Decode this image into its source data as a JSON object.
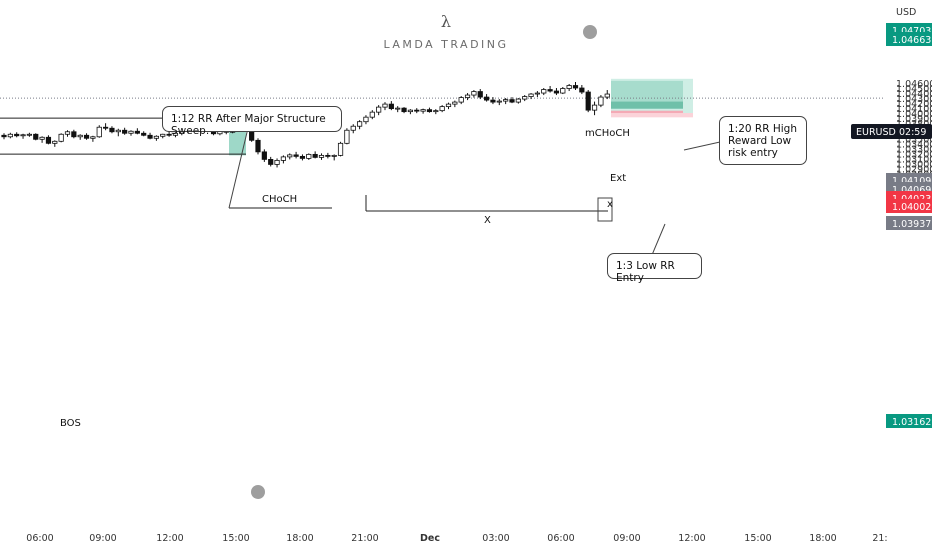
{
  "watermark": {
    "logo": "λ",
    "name": "LAMDA TRADING"
  },
  "chart_data": {
    "type": "candlestick",
    "currency_label": "USD",
    "symbol": "EURUSD",
    "countdown": "02:59",
    "x_ticks": [
      "06:00",
      "09:00",
      "12:00",
      "15:00",
      "18:00",
      "21:00",
      "Dec",
      "03:00",
      "06:00",
      "09:00",
      "12:00",
      "15:00",
      "18:00",
      "21:"
    ],
    "y_ticks": [
      "1.04600",
      "1.04500",
      "1.04400",
      "1.04300",
      "1.04200",
      "1.04100",
      "1.04000",
      "1.03900",
      "1.03800",
      "1.03700",
      "1.03600",
      "1.03500",
      "1.03400",
      "1.03300",
      "1.03200",
      "1.03100",
      "1.03000",
      "1.02900",
      "1.02800"
    ],
    "ylim": [
      1.0275,
      1.0478
    ],
    "price_tags": [
      {
        "value": "1.04703",
        "color": "#089981"
      },
      {
        "value": "1.04663",
        "color": "#089981"
      },
      {
        "value": "1.04109",
        "color": "#787b86"
      },
      {
        "value": "1.04069",
        "color": "#787b86"
      },
      {
        "value": "1.04023",
        "color": "#f23645"
      },
      {
        "value": "1.04002",
        "color": "#f23645"
      },
      {
        "value": "1.03937",
        "color": "#787b86"
      },
      {
        "value": "1.03162",
        "color": "#089981"
      }
    ],
    "current_price": 1.0432,
    "candles_approx": [
      [
        1.0358,
        1.0362,
        1.035,
        1.0355
      ],
      [
        1.0355,
        1.0363,
        1.0352,
        1.036
      ],
      [
        1.036,
        1.0364,
        1.0354,
        1.0357
      ],
      [
        1.0357,
        1.0361,
        1.0351,
        1.0359
      ],
      [
        1.0359,
        1.0363,
        1.0355,
        1.036
      ],
      [
        1.036,
        1.0362,
        1.0348,
        1.035
      ],
      [
        1.035,
        1.0356,
        1.0343,
        1.0354
      ],
      [
        1.0354,
        1.0358,
        1.034,
        1.0342
      ],
      [
        1.0342,
        1.0348,
        1.0335,
        1.0346
      ],
      [
        1.0346,
        1.0362,
        1.0344,
        1.036
      ],
      [
        1.036,
        1.0368,
        1.0355,
        1.0365
      ],
      [
        1.0365,
        1.0369,
        1.0352,
        1.0355
      ],
      [
        1.0355,
        1.036,
        1.0349,
        1.0358
      ],
      [
        1.0358,
        1.0362,
        1.0349,
        1.0352
      ],
      [
        1.0352,
        1.0357,
        1.0345,
        1.0355
      ],
      [
        1.0355,
        1.0378,
        1.0353,
        1.0374
      ],
      [
        1.0374,
        1.0382,
        1.0368,
        1.0372
      ],
      [
        1.0372,
        1.0376,
        1.0362,
        1.0365
      ],
      [
        1.0365,
        1.0371,
        1.0356,
        1.0368
      ],
      [
        1.0368,
        1.0373,
        1.0359,
        1.0362
      ],
      [
        1.0362,
        1.0368,
        1.0357,
        1.0366
      ],
      [
        1.0366,
        1.0372,
        1.036,
        1.0362
      ],
      [
        1.0362,
        1.0366,
        1.0356,
        1.0358
      ],
      [
        1.0358,
        1.0363,
        1.035,
        1.0352
      ],
      [
        1.0352,
        1.0358,
        1.0347,
        1.0356
      ],
      [
        1.0356,
        1.0361,
        1.0352,
        1.036
      ],
      [
        1.036,
        1.0366,
        1.0355,
        1.0358
      ],
      [
        1.0358,
        1.0364,
        1.0354,
        1.0362
      ],
      [
        1.0362,
        1.037,
        1.0358,
        1.0368
      ],
      [
        1.0368,
        1.0374,
        1.0362,
        1.037
      ],
      [
        1.037,
        1.0382,
        1.0366,
        1.0378
      ],
      [
        1.0378,
        1.0388,
        1.0372,
        1.0384
      ],
      [
        1.0384,
        1.0392,
        1.0378,
        1.038
      ],
      [
        1.038,
        1.0385,
        1.0358,
        1.0361
      ],
      [
        1.0361,
        1.0376,
        1.0358,
        1.0372
      ],
      [
        1.0372,
        1.0378,
        1.036,
        1.0364
      ],
      [
        1.0364,
        1.0388,
        1.0362,
        1.0386
      ],
      [
        1.0386,
        1.0394,
        1.0378,
        1.039
      ],
      [
        1.039,
        1.0392,
        1.0372,
        1.0375
      ],
      [
        1.0375,
        1.0378,
        1.0345,
        1.0348
      ],
      [
        1.0348,
        1.0352,
        1.032,
        1.0325
      ],
      [
        1.0325,
        1.033,
        1.0305,
        1.031
      ],
      [
        1.031,
        1.0315,
        1.0296,
        1.03
      ],
      [
        1.03,
        1.0312,
        1.0294,
        1.0308
      ],
      [
        1.0308,
        1.0318,
        1.0302,
        1.0315
      ],
      [
        1.0315,
        1.0322,
        1.031,
        1.0319
      ],
      [
        1.0319,
        1.0325,
        1.0312,
        1.0316
      ],
      [
        1.0316,
        1.032,
        1.0308,
        1.0312
      ],
      [
        1.0312,
        1.0322,
        1.0309,
        1.032
      ],
      [
        1.032,
        1.0326,
        1.0312,
        1.0314
      ],
      [
        1.0314,
        1.0322,
        1.0309,
        1.0318
      ],
      [
        1.0318,
        1.0323,
        1.0312,
        1.0316
      ],
      [
        1.0316,
        1.032,
        1.0308,
        1.0318
      ],
      [
        1.0318,
        1.0345,
        1.0316,
        1.0342
      ],
      [
        1.0342,
        1.0372,
        1.034,
        1.0368
      ],
      [
        1.0368,
        1.038,
        1.0362,
        1.0376
      ],
      [
        1.0376,
        1.0388,
        1.037,
        1.0385
      ],
      [
        1.0385,
        1.0398,
        1.038,
        1.0394
      ],
      [
        1.0394,
        1.0408,
        1.039,
        1.0404
      ],
      [
        1.0404,
        1.0418,
        1.0398,
        1.0414
      ],
      [
        1.0414,
        1.0424,
        1.0408,
        1.042
      ],
      [
        1.042,
        1.0426,
        1.0408,
        1.0411
      ],
      [
        1.0411,
        1.0416,
        1.0404,
        1.0412
      ],
      [
        1.0412,
        1.0414,
        1.0402,
        1.0405
      ],
      [
        1.0405,
        1.041,
        1.04,
        1.0408
      ],
      [
        1.0408,
        1.0412,
        1.0402,
        1.0406
      ],
      [
        1.0406,
        1.0411,
        1.0401,
        1.0409
      ],
      [
        1.0409,
        1.0413,
        1.0403,
        1.0405
      ],
      [
        1.0405,
        1.041,
        1.04,
        1.0407
      ],
      [
        1.0407,
        1.0418,
        1.0404,
        1.0415
      ],
      [
        1.0415,
        1.0423,
        1.041,
        1.042
      ],
      [
        1.042,
        1.0427,
        1.0414,
        1.0424
      ],
      [
        1.0424,
        1.0436,
        1.042,
        1.0433
      ],
      [
        1.0433,
        1.0442,
        1.0428,
        1.0438
      ],
      [
        1.0438,
        1.0448,
        1.0433,
        1.0445
      ],
      [
        1.0445,
        1.045,
        1.043,
        1.0434
      ],
      [
        1.0434,
        1.044,
        1.0425,
        1.0428
      ],
      [
        1.0428,
        1.0434,
        1.042,
        1.0424
      ],
      [
        1.0424,
        1.043,
        1.0418,
        1.0426
      ],
      [
        1.0426,
        1.0432,
        1.042,
        1.0429
      ],
      [
        1.0429,
        1.0434,
        1.0422,
        1.0424
      ],
      [
        1.0424,
        1.0432,
        1.0421,
        1.043
      ],
      [
        1.043,
        1.0438,
        1.0426,
        1.0435
      ],
      [
        1.0435,
        1.0442,
        1.043,
        1.044
      ],
      [
        1.044,
        1.0446,
        1.0434,
        1.0442
      ],
      [
        1.0442,
        1.0452,
        1.0438,
        1.0449
      ],
      [
        1.0449,
        1.0456,
        1.0443,
        1.0446
      ],
      [
        1.0446,
        1.0452,
        1.0438,
        1.0442
      ],
      [
        1.0442,
        1.0454,
        1.044,
        1.0451
      ],
      [
        1.0451,
        1.046,
        1.0446,
        1.0457
      ],
      [
        1.0457,
        1.0464,
        1.0448,
        1.0452
      ],
      [
        1.0452,
        1.0458,
        1.044,
        1.0444
      ],
      [
        1.0444,
        1.0448,
        1.0404,
        1.0408
      ],
      [
        1.0408,
        1.0425,
        1.0398,
        1.0418
      ],
      [
        1.0418,
        1.0438,
        1.0414,
        1.0434
      ],
      [
        1.0434,
        1.0448,
        1.043,
        1.044
      ]
    ],
    "bos_level": 1.03205,
    "choch_level": 1.0392,
    "x_level": 1.0395,
    "labels": {
      "bos": "BOS",
      "choch": "CHoCH",
      "x_mark": "X",
      "mchoch": "mCHoCH",
      "ext": "Ext",
      "small_x": "x",
      "callout_1_12": "1:12 RR After Major Structure Sweep.",
      "callout_1_20": "1:20 RR High Reward Low risk entry",
      "callout_1_3": "1:3 Low RR Entry"
    },
    "trade_setups": [
      {
        "name": "1:12 RR",
        "entry": 1.0392,
        "stop": 1.0398,
        "target": 1.0318
      },
      {
        "name": "1:20 RR / 1:3 RR",
        "entry": 1.04023,
        "stop": 1.03937,
        "target": 1.04703
      }
    ]
  }
}
